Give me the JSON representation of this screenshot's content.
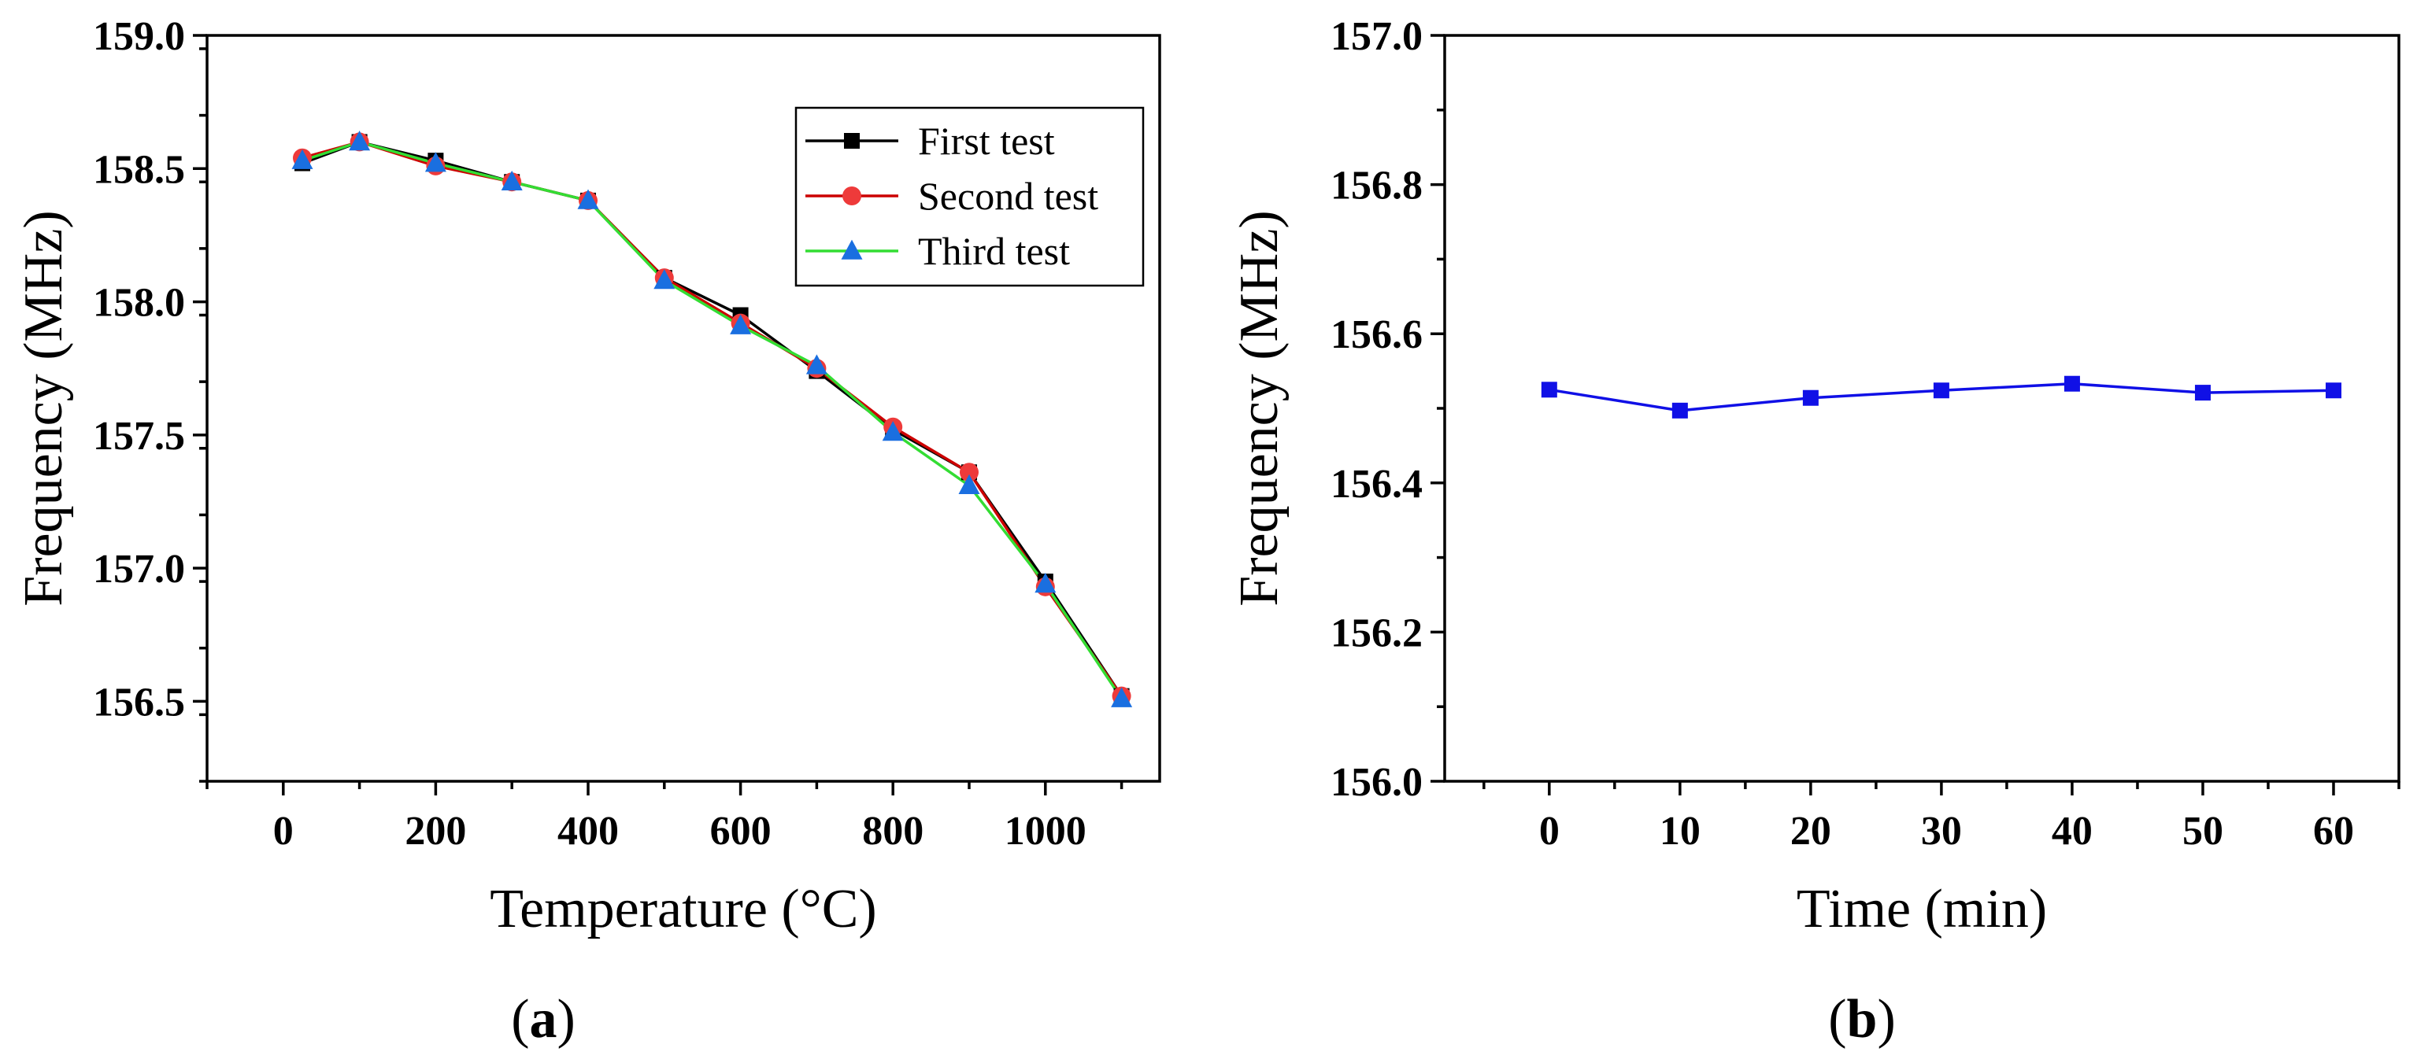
{
  "colors": {
    "first": "#000000",
    "second_line": "#cc0000",
    "second_marker": "#ee3a3a",
    "third_line": "#33dd33",
    "third_marker": "#1a6fe0",
    "time_series": "#1010e6"
  },
  "chart_data": [
    {
      "type": "line",
      "panel_label": "a",
      "title": "",
      "xlabel": "Temperature (°C)",
      "ylabel": "Frequency (MHz)",
      "xlim": [
        -100,
        1150
      ],
      "ylim": [
        156.2,
        159.0
      ],
      "xticks": [
        0,
        200,
        400,
        600,
        800,
        1000
      ],
      "xtick_labels": [
        "0",
        "200",
        "400",
        "600",
        "800",
        "1000"
      ],
      "yticks": [
        156.5,
        157.0,
        157.5,
        158.0,
        158.5,
        159.0
      ],
      "ytick_labels": [
        "156.5",
        "157.0",
        "157.5",
        "158.0",
        "158.5",
        "159.0"
      ],
      "x": [
        25,
        100,
        200,
        300,
        400,
        500,
        600,
        700,
        800,
        900,
        1000,
        1100
      ],
      "legend_position": "top-right",
      "series": [
        {
          "name": "First test",
          "marker": "square",
          "color_key": "first",
          "marker_color_key": "first",
          "values": [
            158.52,
            158.6,
            158.53,
            158.45,
            158.38,
            158.09,
            157.95,
            157.74,
            157.52,
            157.36,
            156.95,
            156.52
          ]
        },
        {
          "name": "Second test",
          "marker": "circle",
          "color_key": "second_line",
          "marker_color_key": "second_marker",
          "values": [
            158.54,
            158.6,
            158.51,
            158.45,
            158.38,
            158.09,
            157.92,
            157.75,
            157.53,
            157.36,
            156.93,
            156.52
          ]
        },
        {
          "name": "Third test",
          "marker": "triangle",
          "color_key": "third_line",
          "marker_color_key": "third_marker",
          "values": [
            158.53,
            158.6,
            158.52,
            158.45,
            158.38,
            158.08,
            157.91,
            157.76,
            157.51,
            157.31,
            156.94,
            156.51
          ]
        }
      ]
    },
    {
      "type": "line",
      "panel_label": "b",
      "title": "",
      "xlabel": "Time (min)",
      "ylabel": "Frequency (MHz)",
      "xlim": [
        -8,
        65
      ],
      "ylim": [
        156.0,
        157.0
      ],
      "xticks": [
        0,
        10,
        20,
        30,
        40,
        50,
        60
      ],
      "xtick_labels": [
        "0",
        "10",
        "20",
        "30",
        "40",
        "50",
        "60"
      ],
      "yticks": [
        156.0,
        156.2,
        156.4,
        156.6,
        156.8,
        157.0
      ],
      "ytick_labels": [
        "156.0",
        "156.2",
        "156.4",
        "156.6",
        "156.8",
        "157.0"
      ],
      "x": [
        0,
        10,
        20,
        30,
        40,
        50,
        60
      ],
      "series": [
        {
          "name": "Frequency",
          "marker": "square",
          "color_key": "time_series",
          "marker_color_key": "time_series",
          "values": [
            156.525,
            156.497,
            156.514,
            156.524,
            156.533,
            156.521,
            156.524
          ]
        }
      ]
    }
  ]
}
